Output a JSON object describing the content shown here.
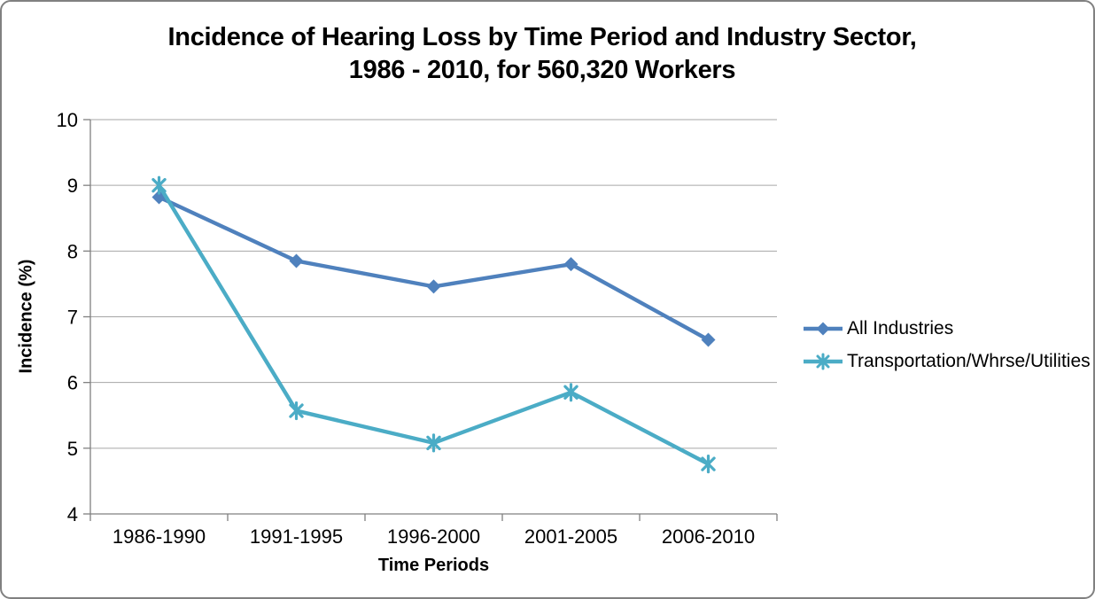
{
  "title": {
    "line1": "Incidence of Hearing Loss by Time Period and Industry Sector,",
    "line2": "1986 - 2010, for 560,320 Workers"
  },
  "chart_data": {
    "type": "line",
    "categories": [
      "1986-1990",
      "1991-1995",
      "1996-2000",
      "2001-2005",
      "2006-2010"
    ],
    "series": [
      {
        "name": "All Industries",
        "values": [
          8.82,
          7.85,
          7.46,
          7.8,
          6.65
        ],
        "color": "#4F81BD",
        "marker": "diamond"
      },
      {
        "name": "Transportation/Whrse/Utilities",
        "values": [
          9.0,
          5.57,
          5.08,
          5.85,
          4.76
        ],
        "color": "#4BACC6",
        "marker": "asterisk"
      }
    ],
    "title": "Incidence of Hearing Loss by Time Period and Industry Sector, 1986 - 2010, for 560,320 Workers",
    "xlabel": "Time Periods",
    "ylabel": "Incidence (%)",
    "ylim": [
      4,
      10
    ],
    "yticks": [
      4,
      5,
      6,
      7,
      8,
      9,
      10
    ],
    "grid": true,
    "legend_position": "right"
  },
  "colors": {
    "gridline": "#A6A6A6",
    "axis": "#808080",
    "tick_text": "#000000",
    "frame_border": "#808080",
    "background": "#FFFFFF"
  }
}
